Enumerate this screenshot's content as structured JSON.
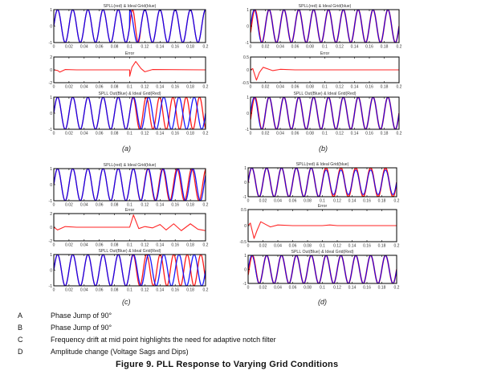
{
  "figure": {
    "caption": "Figure 9. PLL Response to Varying Grid Conditions",
    "legend": [
      {
        "key": "A",
        "text": "Phase Jump of 90°"
      },
      {
        "key": "B",
        "text": "Phase Jump of 90°"
      },
      {
        "key": "C",
        "text": "Frequency drift at mid point highlights the need for adaptive notch filter"
      },
      {
        "key": "D",
        "text": "Amplitude change (Voltage Sags and Dips)"
      }
    ],
    "panels": [
      {
        "label": "(a)"
      },
      {
        "label": "(b)"
      },
      {
        "label": "(c)"
      },
      {
        "label": "(d)"
      }
    ],
    "colors": {
      "spll": "#ff0000",
      "ideal": "#0000ff",
      "error": "#ff0000",
      "axis": "#000000"
    }
  },
  "chart_data": [
    {
      "panel": "a",
      "type": "line",
      "title": "SPLL(red) & Ideal Grid(blue)",
      "x_ticks": [
        "0",
        "0.02",
        "0.04",
        "0.06",
        "0.08",
        "0.1",
        "0.12",
        "0.14",
        "0.16",
        "0.18",
        "0.2"
      ],
      "xlim": [
        0,
        0.2
      ],
      "ylim": [
        -1,
        1
      ],
      "y_ticks": [
        "-1",
        "0",
        "1"
      ],
      "series": [
        {
          "name": "SPLL",
          "color": "#ff0000",
          "description": "50 Hz sine tracking ideal; 90° phase jump at t=0.1 s, re-locks within ~1 cycle"
        },
        {
          "name": "Ideal Grid",
          "color": "#0000ff",
          "description": "50 Hz unit sine with 90° phase jump at t=0.1 s"
        }
      ]
    },
    {
      "panel": "a",
      "type": "line",
      "title": "Error",
      "x_ticks": [
        "0",
        "0.02",
        "0.04",
        "0.06",
        "0.08",
        "0.1",
        "0.12",
        "0.14",
        "0.16",
        "0.18",
        "0.2"
      ],
      "xlim": [
        0,
        0.2
      ],
      "ylim": [
        -2,
        2
      ],
      "y_ticks": [
        "-2",
        "0",
        "2"
      ],
      "series": [
        {
          "name": "Error",
          "color": "#ff0000",
          "points": [
            [
              0,
              0
            ],
            [
              0.005,
              -0.1
            ],
            [
              0.008,
              -0.35
            ],
            [
              0.015,
              0.05
            ],
            [
              0.03,
              0
            ],
            [
              0.1,
              0
            ],
            [
              0.1,
              -1.0
            ],
            [
              0.103,
              0.4
            ],
            [
              0.108,
              1.3
            ],
            [
              0.115,
              0.2
            ],
            [
              0.12,
              -0.3
            ],
            [
              0.13,
              0.05
            ],
            [
              0.2,
              0
            ]
          ]
        }
      ]
    },
    {
      "panel": "a",
      "type": "line",
      "title": "SPLL Out(Blue) & Ideal Grid(Red)",
      "x_ticks": [
        "0",
        "0.02",
        "0.04",
        "0.06",
        "0.08",
        "0.1",
        "0.12",
        "0.14",
        "0.16",
        "0.18",
        "0.2"
      ],
      "xlim": [
        0,
        0.2
      ],
      "ylim": [
        -1,
        1
      ],
      "y_ticks": [
        "-1",
        "0",
        "1"
      ],
      "series": [
        {
          "name": "SPLL Out",
          "color": "#0000ff",
          "description": "50 Hz sine"
        },
        {
          "name": "Ideal Grid",
          "color": "#ff0000",
          "description": "50 Hz until 0.1 s, then shifted frequency drifting apart"
        }
      ]
    },
    {
      "panel": "b",
      "type": "line",
      "title": "SPLL(red) & Ideal Grid(blue)",
      "x_ticks": [
        "0",
        "0.02",
        "0.04",
        "0.06",
        "0.08",
        "0.1",
        "0.12",
        "0.14",
        "0.16",
        "0.18",
        "0.2"
      ],
      "xlim": [
        0,
        0.2
      ],
      "ylim": [
        -1,
        1
      ],
      "y_ticks": [
        "-1",
        "0",
        "1"
      ],
      "series": [
        {
          "name": "SPLL",
          "color": "#ff0000",
          "description": "50 Hz sine, locks after initial transient"
        },
        {
          "name": "Ideal Grid",
          "color": "#0000ff",
          "description": "50 Hz unit sine"
        }
      ]
    },
    {
      "panel": "b",
      "type": "line",
      "title": "Error",
      "x_ticks": [
        "0",
        "0.02",
        "0.04",
        "0.06",
        "0.08",
        "0.1",
        "0.12",
        "0.14",
        "0.16",
        "0.18",
        "0.2"
      ],
      "xlim": [
        0,
        0.2
      ],
      "ylim": [
        -0.5,
        0.5
      ],
      "y_ticks": [
        "-0.5",
        "0",
        "0.5"
      ],
      "series": [
        {
          "name": "Error",
          "color": "#ff0000",
          "points": [
            [
              0,
              0
            ],
            [
              0.003,
              0.05
            ],
            [
              0.008,
              -0.4
            ],
            [
              0.012,
              -0.1
            ],
            [
              0.017,
              0.1
            ],
            [
              0.025,
              0.02
            ],
            [
              0.03,
              -0.03
            ],
            [
              0.04,
              0.02
            ],
            [
              0.06,
              0
            ],
            [
              0.2,
              0
            ]
          ]
        }
      ]
    },
    {
      "panel": "b",
      "type": "line",
      "title": "SPLL Out(Blue) & Ideal Grid(Red)",
      "x_ticks": [
        "0",
        "0.02",
        "0.04",
        "0.06",
        "0.08",
        "0.1",
        "0.12",
        "0.14",
        "0.16",
        "0.18",
        "0.2"
      ],
      "xlim": [
        0,
        0.2
      ],
      "ylim": [
        -1,
        1
      ],
      "y_ticks": [
        "-1",
        "0",
        "1"
      ],
      "series": [
        {
          "name": "SPLL Out",
          "color": "#0000ff",
          "description": "50 Hz sine"
        },
        {
          "name": "Ideal Grid",
          "color": "#ff0000",
          "description": "50 Hz sine"
        }
      ]
    },
    {
      "panel": "c",
      "type": "line",
      "title": "SPLL(red) & Ideal Grid(blue)",
      "x_ticks": [
        "0",
        "0.02",
        "0.04",
        "0.06",
        "0.08",
        "0.1",
        "0.12",
        "0.14",
        "0.16",
        "0.18",
        "0.2"
      ],
      "xlim": [
        0,
        0.2
      ],
      "ylim": [
        -1,
        1
      ],
      "y_ticks": [
        "-1",
        "0",
        "1"
      ],
      "series": [
        {
          "name": "SPLL",
          "color": "#ff0000",
          "description": "50 Hz sine; slight mismatch after 0.1 s"
        },
        {
          "name": "Ideal Grid",
          "color": "#0000ff",
          "description": "50 Hz until 0.1 s then frequency drift"
        }
      ]
    },
    {
      "panel": "c",
      "type": "line",
      "title": "Error",
      "x_ticks": [
        "0",
        "0.02",
        "0.04",
        "0.06",
        "0.08",
        "0.1",
        "0.12",
        "0.14",
        "0.16",
        "0.18",
        "0.2"
      ],
      "xlim": [
        0,
        0.2
      ],
      "ylim": [
        -2,
        2
      ],
      "y_ticks": [
        "-2",
        "0",
        "2"
      ],
      "series": [
        {
          "name": "Error",
          "color": "#ff0000",
          "points": [
            [
              0,
              0
            ],
            [
              0.005,
              -0.4
            ],
            [
              0.015,
              0.1
            ],
            [
              0.03,
              0
            ],
            [
              0.1,
              0
            ],
            [
              0.105,
              1.8
            ],
            [
              0.112,
              -0.2
            ],
            [
              0.12,
              0.1
            ],
            [
              0.13,
              -0.1
            ],
            [
              0.14,
              0.4
            ],
            [
              0.148,
              -0.4
            ],
            [
              0.158,
              0.5
            ],
            [
              0.168,
              -0.5
            ],
            [
              0.18,
              0.5
            ],
            [
              0.19,
              -0.3
            ],
            [
              0.2,
              -0.5
            ]
          ]
        }
      ]
    },
    {
      "panel": "c",
      "type": "line",
      "title": "SPLL Out(Blue) & Ideal Grid(Red)",
      "x_ticks": [
        "0",
        "0.02",
        "0.04",
        "0.06",
        "0.08",
        "0.1",
        "0.12",
        "0.14",
        "0.16",
        "0.18",
        "0.2"
      ],
      "xlim": [
        0,
        0.2
      ],
      "ylim": [
        -1,
        1
      ],
      "y_ticks": [
        "-1",
        "0",
        "1"
      ],
      "series": [
        {
          "name": "SPLL Out",
          "color": "#0000ff",
          "description": "50 Hz sine"
        },
        {
          "name": "Ideal Grid",
          "color": "#ff0000",
          "description": "50 Hz until 0.1 s then drifting frequency"
        }
      ]
    },
    {
      "panel": "d",
      "type": "line",
      "title": "SPLL(red) & Ideal Grid(blue)",
      "x_ticks": [
        "0",
        "0.02",
        "0.04",
        "0.06",
        "0.08",
        "0.1",
        "0.12",
        "0.14",
        "0.16",
        "0.18",
        "0.2"
      ],
      "xlim": [
        0,
        0.2
      ],
      "ylim": [
        -1,
        1
      ],
      "y_ticks": [
        "-1",
        "0",
        "1"
      ],
      "series": [
        {
          "name": "SPLL",
          "color": "#ff0000",
          "description": "unit amplitude 50 Hz sine"
        },
        {
          "name": "Ideal Grid",
          "color": "#0000ff",
          "description": "unit amplitude until 0.1 s, sagged to ~0.85 after"
        }
      ]
    },
    {
      "panel": "d",
      "type": "line",
      "title": "Error",
      "x_ticks": [
        "0",
        "0.02",
        "0.04",
        "0.06",
        "0.08",
        "0.1",
        "0.12",
        "0.14",
        "0.16",
        "0.18",
        "0.2"
      ],
      "xlim": [
        0,
        0.2
      ],
      "ylim": [
        -0.5,
        0.5
      ],
      "y_ticks": [
        "-0.5",
        "0",
        "0.5"
      ],
      "series": [
        {
          "name": "Error",
          "color": "#ff0000",
          "points": [
            [
              0,
              0
            ],
            [
              0.003,
              0.08
            ],
            [
              0.008,
              -0.4
            ],
            [
              0.012,
              -0.15
            ],
            [
              0.017,
              0.12
            ],
            [
              0.025,
              0.02
            ],
            [
              0.03,
              -0.04
            ],
            [
              0.04,
              0.02
            ],
            [
              0.06,
              0
            ],
            [
              0.1,
              0
            ],
            [
              0.11,
              0.02
            ],
            [
              0.12,
              0
            ],
            [
              0.2,
              0
            ]
          ]
        }
      ]
    },
    {
      "panel": "d",
      "type": "line",
      "title": "SPLL Out(Blue) & Ideal Grid(Red)",
      "x_ticks": [
        "0",
        "0.02",
        "0.04",
        "0.06",
        "0.08",
        "0.1",
        "0.12",
        "0.14",
        "0.16",
        "0.18",
        "0.2"
      ],
      "xlim": [
        0,
        0.2
      ],
      "ylim": [
        -1,
        1
      ],
      "y_ticks": [
        "-1",
        "0",
        "1"
      ],
      "series": [
        {
          "name": "SPLL Out",
          "color": "#0000ff",
          "description": "50 Hz sine"
        },
        {
          "name": "Ideal Grid",
          "color": "#ff0000",
          "description": "50 Hz sine"
        }
      ]
    }
  ]
}
